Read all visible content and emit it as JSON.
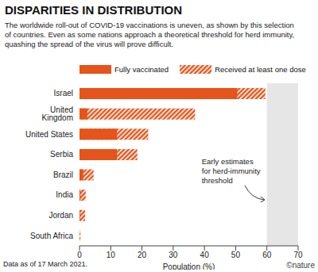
{
  "chart_data": {
    "type": "bar",
    "orientation": "horizontal",
    "stacked": false,
    "grid": false,
    "title": "DISPARITIES IN DISTRIBUTION",
    "subtitle": "The worldwide roll-out of COVID-19 vaccinations is uneven, as shown by this selection of countries. Even as some nations approach a theoretical threshold for herd immunity, quashing the spread of the virus will prove difficult.",
    "categories": [
      "Israel",
      "United Kingdom",
      "United States",
      "Serbia",
      "Brazil",
      "India",
      "Jordan",
      "South Africa"
    ],
    "series": [
      {
        "name": "Fully vaccinated",
        "color": "#e5541b",
        "values": [
          50.5,
          2.5,
          12,
          12,
          1.2,
          0.3,
          0.2,
          0
        ]
      },
      {
        "name": "Received at least one dose",
        "color": "#e5541b",
        "values": [
          59.5,
          37,
          22,
          18.5,
          4.5,
          2,
          1.8,
          0.3
        ]
      }
    ],
    "xlim": [
      0,
      70
    ],
    "xticks": [
      0,
      10,
      20,
      30,
      40,
      50,
      60,
      70
    ],
    "xlabel": "Population (%)",
    "annotation": {
      "text": "Early estimates for herd-immunity threshold",
      "x_range": [
        60,
        70
      ]
    },
    "note": "Data as of 17 March 2021.",
    "source": "©nature"
  }
}
